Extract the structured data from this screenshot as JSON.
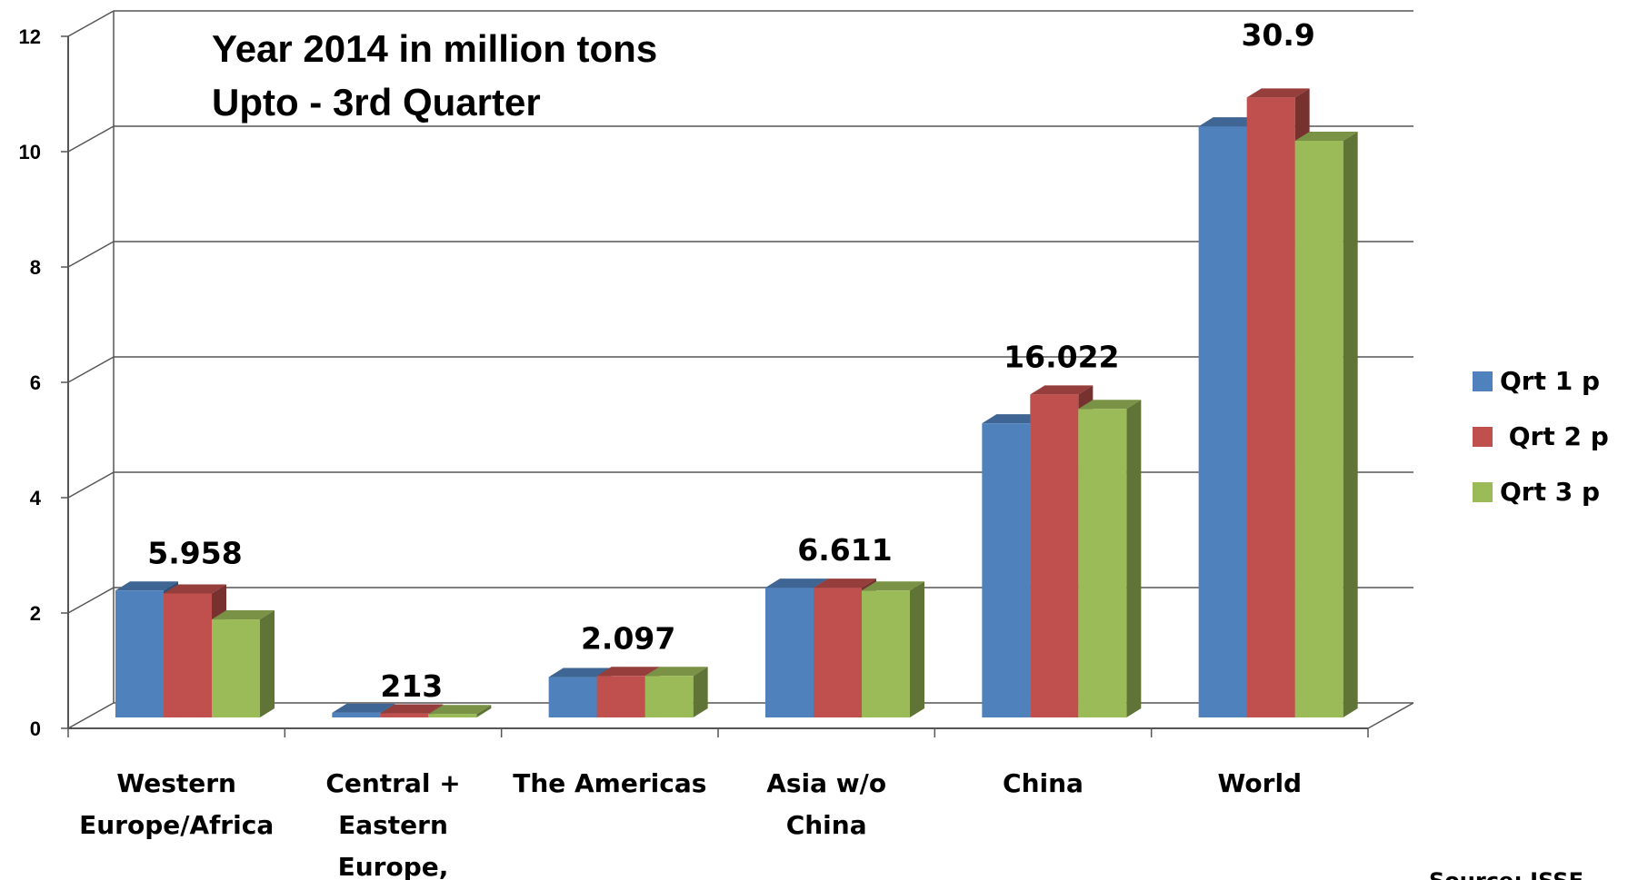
{
  "chart_data": {
    "type": "bar",
    "title": "Year 2014 in million tons",
    "subtitle": "Upto - 3rd Quarter",
    "categories": [
      [
        "Western",
        "Europe/Africa"
      ],
      [
        "Central +",
        "Eastern",
        "Europe,"
      ],
      [
        "The Americas"
      ],
      [
        "Asia w/o",
        "China"
      ],
      [
        "China"
      ],
      [
        "World"
      ]
    ],
    "series": [
      {
        "name": "Qrt 1 p",
        "color": "#4F81BD",
        "values": [
          2.2,
          0.08,
          0.7,
          2.25,
          5.1,
          10.25
        ]
      },
      {
        "name": " Qrt 2 p",
        "color": "#C0504D",
        "values": [
          2.15,
          0.07,
          0.72,
          2.25,
          5.6,
          10.75
        ]
      },
      {
        "name": "Qrt 3 p",
        "color": "#9BBB59",
        "values": [
          1.7,
          0.06,
          0.72,
          2.2,
          5.35,
          10.0
        ]
      }
    ],
    "data_labels": [
      "5.958",
      "213",
      "2.097",
      "6.611",
      "16.022",
      "30.9"
    ],
    "ylim": [
      0,
      12
    ],
    "yticks": [
      "0",
      "2",
      "4",
      "6",
      "8",
      "10",
      "12"
    ],
    "grid": true,
    "legend": "right",
    "source_text": "Source: ISSF"
  }
}
